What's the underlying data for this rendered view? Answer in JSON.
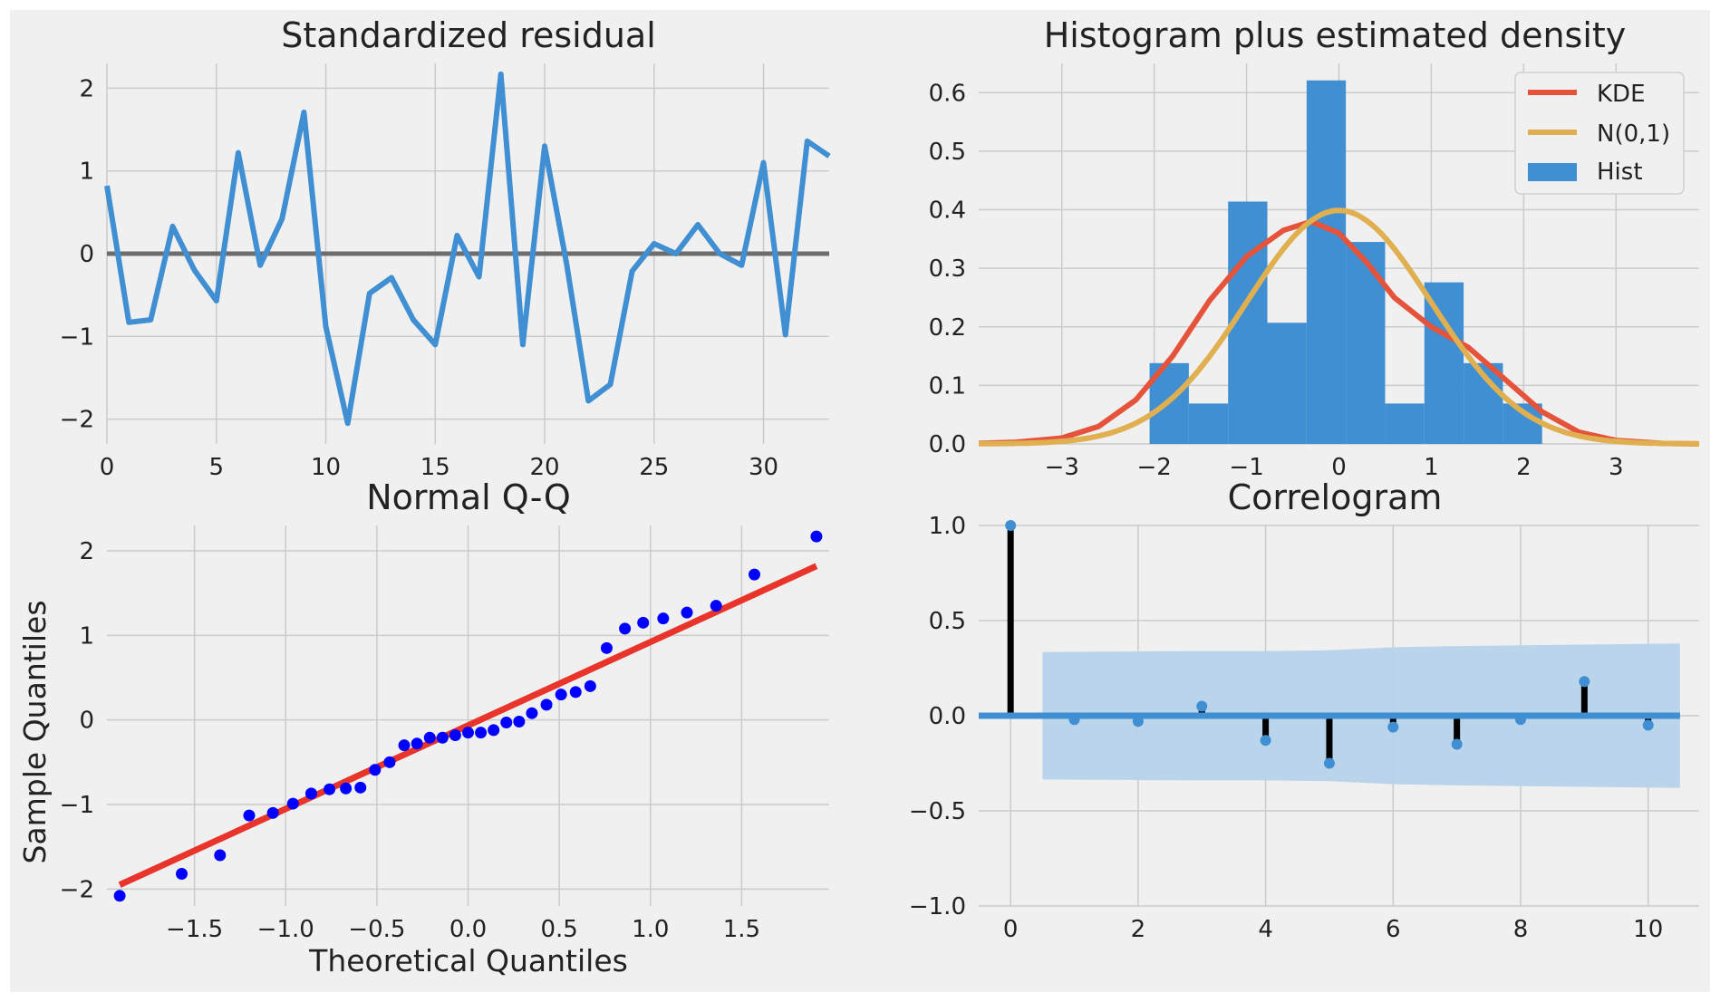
{
  "colors": {
    "figure_bg": "#ffffff",
    "frame_bg": "#f0f0f0",
    "axes_bg": "#f0f0f0",
    "grid": "#cbcbcb",
    "blue": "#3f8fd2",
    "blue_light": "#b6d3ea",
    "red": "#e5533b",
    "orange": "#e0b050",
    "gray": "#6d6d6d",
    "qq_points": "#0000ff",
    "qq_line": "#e8342a",
    "stem": "#000000"
  },
  "chart_data": [
    {
      "type": "line",
      "title": "Standardized residual",
      "xlabel": "",
      "ylabel": "",
      "xlim": [
        0,
        33
      ],
      "ylim": [
        -2.3,
        2.3
      ],
      "xticks": [
        0,
        5,
        10,
        15,
        20,
        25,
        30
      ],
      "yticks": [
        -2,
        -1,
        0,
        1,
        2
      ],
      "x": [
        0,
        1,
        2,
        3,
        4,
        5,
        6,
        7,
        8,
        9,
        10,
        11,
        12,
        13,
        14,
        15,
        16,
        17,
        18,
        19,
        20,
        21,
        22,
        23,
        24,
        25,
        26,
        27,
        28,
        29,
        30,
        31,
        32,
        33
      ],
      "y": [
        0.82,
        -0.83,
        -0.8,
        0.33,
        -0.2,
        -0.57,
        1.22,
        -0.14,
        0.42,
        1.71,
        -0.88,
        -2.05,
        -0.48,
        -0.29,
        -0.8,
        -1.1,
        0.22,
        -0.28,
        2.17,
        -1.1,
        1.3,
        -0.12,
        -1.78,
        -1.58,
        -0.21,
        0.12,
        0.0,
        0.35,
        0.0,
        -0.14,
        1.1,
        -0.98,
        1.36,
        1.18
      ],
      "zero_line": 0
    },
    {
      "type": "bar",
      "title": "Histogram plus estimated density",
      "xlim": [
        -3.9,
        3.9
      ],
      "ylim": [
        0,
        0.65
      ],
      "xticks": [
        -3,
        -2,
        -1,
        0,
        1,
        2,
        3
      ],
      "yticks": [
        0.0,
        0.1,
        0.2,
        0.3,
        0.4,
        0.5,
        0.6
      ],
      "bin_edges": [
        -2.05,
        -1.625,
        -1.2,
        -0.775,
        -0.35,
        0.075,
        0.5,
        0.925,
        1.35,
        1.775,
        2.2
      ],
      "hist": [
        0.138,
        0.069,
        0.414,
        0.207,
        0.621,
        0.345,
        0.069,
        0.276,
        0.138,
        0.069
      ],
      "legend": [
        "KDE",
        "N(0,1)",
        "Hist"
      ],
      "legend_position": "top-right",
      "kde": [
        [
          -3.9,
          0.001
        ],
        [
          -3.5,
          0.003
        ],
        [
          -3.0,
          0.01
        ],
        [
          -2.6,
          0.03
        ],
        [
          -2.2,
          0.075
        ],
        [
          -1.8,
          0.15
        ],
        [
          -1.4,
          0.245
        ],
        [
          -1.0,
          0.32
        ],
        [
          -0.6,
          0.365
        ],
        [
          -0.3,
          0.38
        ],
        [
          0.0,
          0.36
        ],
        [
          0.3,
          0.31
        ],
        [
          0.6,
          0.25
        ],
        [
          1.0,
          0.2
        ],
        [
          1.4,
          0.165
        ],
        [
          1.8,
          0.11
        ],
        [
          2.2,
          0.055
        ],
        [
          2.6,
          0.02
        ],
        [
          3.0,
          0.006
        ],
        [
          3.5,
          0.001
        ],
        [
          3.9,
          0.0
        ]
      ],
      "normal_mean": 0,
      "normal_std": 1
    },
    {
      "type": "scatter",
      "title": "Normal Q-Q",
      "xlabel": "Theoretical Quantiles",
      "ylabel": "Sample Quantiles",
      "xlim": [
        -1.98,
        1.98
      ],
      "ylim": [
        -2.2,
        2.3
      ],
      "xticks": [
        -1.5,
        -1.0,
        -0.5,
        0.0,
        0.5,
        1.0,
        1.5
      ],
      "xtick_labels": [
        "−1.5",
        "−1.0",
        "−0.5",
        "0.0",
        "0.5",
        "1.0",
        "1.5"
      ],
      "yticks": [
        -2,
        -1,
        0,
        1,
        2
      ],
      "points": [
        [
          -1.91,
          -2.08
        ],
        [
          -1.57,
          -1.82
        ],
        [
          -1.36,
          -1.6
        ],
        [
          -1.2,
          -1.13
        ],
        [
          -1.07,
          -1.1
        ],
        [
          -0.96,
          -0.99
        ],
        [
          -0.86,
          -0.87
        ],
        [
          -0.76,
          -0.82
        ],
        [
          -0.67,
          -0.81
        ],
        [
          -0.59,
          -0.8
        ],
        [
          -0.51,
          -0.59
        ],
        [
          -0.43,
          -0.5
        ],
        [
          -0.35,
          -0.3
        ],
        [
          -0.28,
          -0.28
        ],
        [
          -0.21,
          -0.21
        ],
        [
          -0.14,
          -0.21
        ],
        [
          -0.07,
          -0.18
        ],
        [
          0.0,
          -0.15
        ],
        [
          0.07,
          -0.15
        ],
        [
          0.14,
          -0.12
        ],
        [
          0.21,
          -0.03
        ],
        [
          0.28,
          -0.02
        ],
        [
          0.35,
          0.08
        ],
        [
          0.43,
          0.18
        ],
        [
          0.51,
          0.3
        ],
        [
          0.59,
          0.33
        ],
        [
          0.67,
          0.4
        ],
        [
          0.76,
          0.85
        ],
        [
          0.86,
          1.08
        ],
        [
          0.96,
          1.15
        ],
        [
          1.07,
          1.2
        ],
        [
          1.2,
          1.27
        ],
        [
          1.36,
          1.35
        ],
        [
          1.57,
          1.72
        ],
        [
          1.91,
          2.17
        ]
      ],
      "line": [
        [
          -1.91,
          -1.95
        ],
        [
          1.91,
          1.82
        ]
      ]
    },
    {
      "type": "bar",
      "title": "Correlogram",
      "xlim": [
        -0.5,
        10.8
      ],
      "ylim": [
        -1.0,
        1.0
      ],
      "xticks": [
        0,
        2,
        4,
        6,
        8,
        10
      ],
      "yticks": [
        -1.0,
        -0.5,
        0.0,
        0.5,
        1.0
      ],
      "lags": [
        0,
        1,
        2,
        3,
        4,
        5,
        6,
        7,
        8,
        9,
        10
      ],
      "acf": [
        1.0,
        -0.02,
        -0.03,
        0.05,
        -0.13,
        -0.25,
        -0.06,
        -0.15,
        -0.02,
        0.18,
        -0.05
      ],
      "confint": [
        [
          0.5,
          0.335
        ],
        [
          2.0,
          0.338
        ],
        [
          3.0,
          0.34
        ],
        [
          4.0,
          0.34
        ],
        [
          5.0,
          0.344
        ],
        [
          6.0,
          0.36
        ],
        [
          7.0,
          0.366
        ],
        [
          8.0,
          0.37
        ],
        [
          9.0,
          0.374
        ],
        [
          10.5,
          0.38
        ]
      ]
    }
  ]
}
